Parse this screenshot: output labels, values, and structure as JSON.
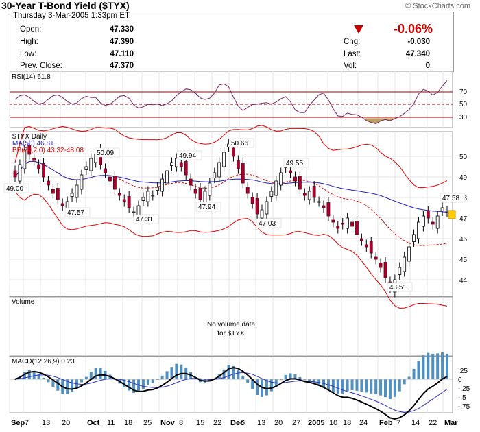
{
  "header": {
    "title": "30-Year T-Bond Yield ($TYX)",
    "copyright": "© StockCharts.com",
    "datetime": "Thursday  3-Mar-2005  1:33pm ET",
    "open_label": "Open:",
    "open_value": "47.330",
    "high_label": "High:",
    "high_value": "47.390",
    "low_label": "Low:",
    "low_value": "47.110",
    "prev_label": "Prev. Close:",
    "prev_value": "47.370",
    "change_pct": "-0.06%",
    "chg_label": "Chg:",
    "chg_value": "-0.030",
    "last_label": "Last:",
    "last_value": "47.340",
    "vol_label": "Vol:",
    "vol_value": "0",
    "down_color": "#cc0000"
  },
  "rsi": {
    "label": "RSI(14) 61.8",
    "levels": [
      "70",
      "50",
      "30"
    ]
  },
  "price": {
    "label": "$TYX Daily",
    "ma_label": "MA(50) 46.81",
    "bb_label": "BB(20,2.0) 43.32-48.08",
    "y_ticks": [
      "50",
      "49",
      "48",
      "47",
      "46",
      "45",
      "44"
    ],
    "annotations": [
      "50.09",
      "49.94",
      "50.66",
      "49.55",
      "49.00",
      "47.57",
      "47.31",
      "47.94",
      "47.03",
      "43.51",
      "47.58"
    ]
  },
  "volume": {
    "label": "Volume",
    "note_line1": "No volume data",
    "note_line2": "for $TYX"
  },
  "macd": {
    "label": "MACD(12,26,9) 0.23",
    "y_ticks": [
      ".25",
      "0",
      "-.25",
      "-.5",
      "-.75"
    ]
  },
  "xaxis": {
    "labels": [
      "Sep",
      "7",
      "13",
      "20",
      "Oct",
      "11",
      "18",
      "25",
      "Nov",
      "8",
      "15",
      "22",
      "Dec",
      "6",
      "13",
      "20",
      "27",
      "2005",
      "10",
      "18",
      "24",
      "Feb",
      "7",
      "14",
      "22",
      "Mar"
    ]
  },
  "chart_data": [
    {
      "type": "line",
      "title": "RSI(14)",
      "ylim": [
        20,
        80
      ],
      "reference_lines": [
        70,
        50,
        30
      ],
      "current": 61.8
    },
    {
      "type": "candlestick",
      "title": "$TYX Daily",
      "ylim": [
        43.2,
        51.2
      ],
      "series": [
        {
          "name": "close",
          "values": [
            49.0,
            49.6,
            50.3,
            50.1,
            49.8,
            49.4,
            49.0,
            48.6,
            48.2,
            47.9,
            47.6,
            47.8,
            48.2,
            48.6,
            49.1,
            49.5,
            49.9,
            50.1,
            49.6,
            49.2,
            48.8,
            48.4,
            48.1,
            47.8,
            47.5,
            47.3,
            47.6,
            48.0,
            48.3,
            48.1,
            48.5,
            48.9,
            49.3,
            49.7,
            49.9,
            49.5,
            49.1,
            48.6,
            48.2,
            47.9,
            48.3,
            48.7,
            49.2,
            49.7,
            50.2,
            50.6,
            50.0,
            49.4,
            48.7,
            48.2,
            47.7,
            47.2,
            47.4,
            47.8,
            48.3,
            48.8,
            49.2,
            49.5,
            49.2,
            48.8,
            48.4,
            48.1,
            48.3,
            48.0,
            47.8,
            47.5,
            47.1,
            46.8,
            46.5,
            46.7,
            47.0,
            46.6,
            46.2,
            45.9,
            45.6,
            45.3,
            45.0,
            44.6,
            44.1,
            43.6,
            44.0,
            44.6,
            45.1,
            45.6,
            46.2,
            46.8,
            47.1,
            47.0,
            46.7,
            47.1,
            47.5,
            47.34
          ]
        },
        {
          "name": "MA(50)",
          "current": 46.81
        },
        {
          "name": "BB(20,2.0)",
          "lower": 43.32,
          "upper": 48.08
        }
      ],
      "annotations": [
        50.09,
        49.94,
        50.66,
        49.55,
        49.0,
        47.57,
        47.31,
        47.94,
        47.03,
        43.51,
        47.58
      ]
    },
    {
      "type": "area",
      "title": "MACD(12,26,9)",
      "ylim": [
        -1.0,
        0.5
      ],
      "current": 0.23
    }
  ]
}
